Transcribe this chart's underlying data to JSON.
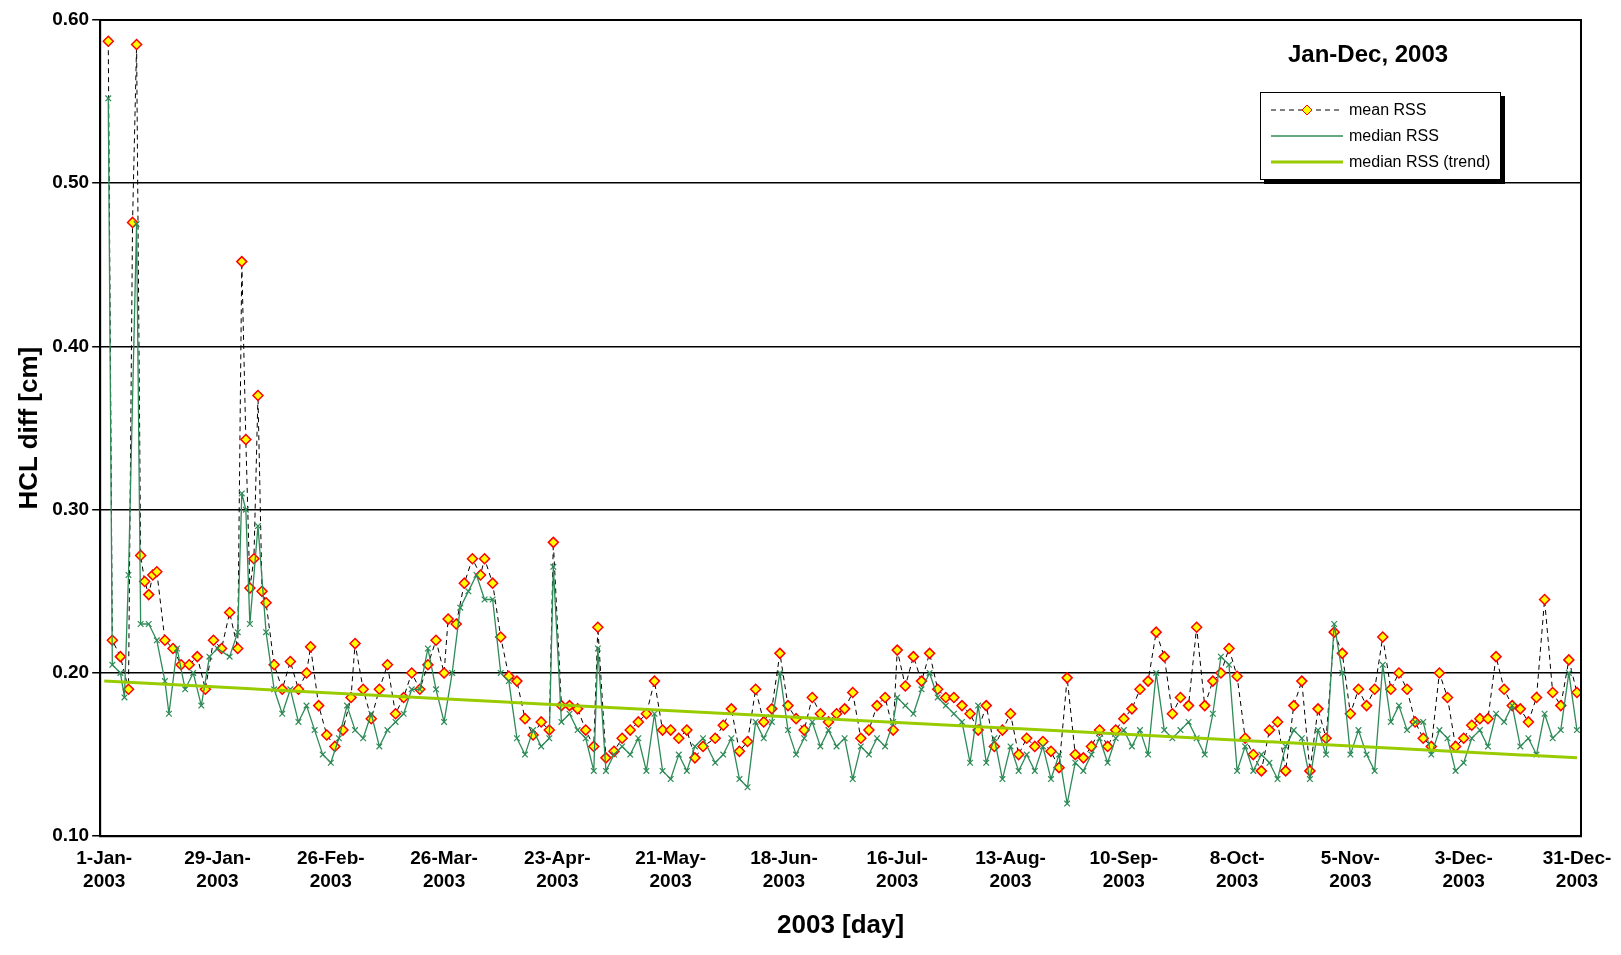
{
  "chart_data": {
    "type": "line",
    "xlabel": "2003 [day]",
    "ylabel": "HCL diff [cm]",
    "annotations": [
      "Jan-Dec, 2003"
    ],
    "legend": "top right",
    "grid": "y",
    "xlim": [
      "2002-12-31",
      "2004-01-01"
    ],
    "xticks": [
      {
        "value": "2003-01-01",
        "label": "1-Jan-2003"
      },
      {
        "value": "2003-01-29",
        "label": "29-Jan-2003"
      },
      {
        "value": "2003-02-26",
        "label": "26-Feb-2003"
      },
      {
        "value": "2003-03-26",
        "label": "26-Mar-2003"
      },
      {
        "value": "2003-04-23",
        "label": "23-Apr-2003"
      },
      {
        "value": "2003-05-21",
        "label": "21-May-2003"
      },
      {
        "value": "2003-06-18",
        "label": "18-Jun-2003"
      },
      {
        "value": "2003-07-16",
        "label": "16-Jul-2003"
      },
      {
        "value": "2003-08-13",
        "label": "13-Aug-2003"
      },
      {
        "value": "2003-09-10",
        "label": "10-Sep-2003"
      },
      {
        "value": "2003-10-08",
        "label": "8-Oct-2003"
      },
      {
        "value": "2003-11-05",
        "label": "5-Nov-2003"
      },
      {
        "value": "2003-12-03",
        "label": "3-Dec-2003"
      },
      {
        "value": "2003-12-31",
        "label": "31-Dec-2003"
      }
    ],
    "ylim": [
      0.1,
      0.6
    ],
    "yticks": [
      {
        "value": 0.1,
        "label": "0.10"
      },
      {
        "value": 0.2,
        "label": "0.20"
      },
      {
        "value": 0.3,
        "label": "0.30"
      },
      {
        "value": 0.4,
        "label": "0.40"
      },
      {
        "value": 0.5,
        "label": "0.50"
      },
      {
        "value": 0.6,
        "label": "0.60"
      }
    ],
    "series": [
      {
        "name": "mean RSS",
        "color": "#ff0000",
        "marker": "diamond",
        "line_style": "dashed",
        "x": [
          "2003-01-02",
          "2003-01-03",
          "2003-01-05",
          "2003-01-07",
          "2003-01-08",
          "2003-01-09",
          "2003-01-10",
          "2003-01-11",
          "2003-01-12",
          "2003-01-13",
          "2003-01-14",
          "2003-01-16",
          "2003-01-18",
          "2003-01-20",
          "2003-01-22",
          "2003-01-24",
          "2003-01-26",
          "2003-01-28",
          "2003-01-30",
          "2003-02-01",
          "2003-02-03",
          "2003-02-04",
          "2003-02-05",
          "2003-02-06",
          "2003-02-07",
          "2003-02-08",
          "2003-02-09",
          "2003-02-10",
          "2003-02-12",
          "2003-02-14",
          "2003-02-16",
          "2003-02-18",
          "2003-02-20",
          "2003-02-21",
          "2003-02-23",
          "2003-02-25",
          "2003-02-27",
          "2003-03-01",
          "2003-03-03",
          "2003-03-04",
          "2003-03-06",
          "2003-03-08",
          "2003-03-10",
          "2003-03-12",
          "2003-03-14",
          "2003-03-16",
          "2003-03-18",
          "2003-03-20",
          "2003-03-22",
          "2003-03-24",
          "2003-03-26",
          "2003-03-27",
          "2003-03-29",
          "2003-03-31",
          "2003-04-02",
          "2003-04-04",
          "2003-04-05",
          "2003-04-07",
          "2003-04-09",
          "2003-04-11",
          "2003-04-13",
          "2003-04-15",
          "2003-04-17",
          "2003-04-19",
          "2003-04-21",
          "2003-04-22",
          "2003-04-24",
          "2003-04-26",
          "2003-04-28",
          "2003-04-30",
          "2003-05-02",
          "2003-05-03",
          "2003-05-05",
          "2003-05-07",
          "2003-05-09",
          "2003-05-11",
          "2003-05-13",
          "2003-05-15",
          "2003-05-17",
          "2003-05-19",
          "2003-05-21",
          "2003-05-23",
          "2003-05-25",
          "2003-05-27",
          "2003-05-29",
          "2003-06-01",
          "2003-06-03",
          "2003-06-05",
          "2003-06-07",
          "2003-06-09",
          "2003-06-11",
          "2003-06-13",
          "2003-06-15",
          "2003-06-17",
          "2003-06-19",
          "2003-06-21",
          "2003-06-23",
          "2003-06-25",
          "2003-06-27",
          "2003-06-29",
          "2003-07-01",
          "2003-07-03",
          "2003-07-05",
          "2003-07-07",
          "2003-07-09",
          "2003-07-11",
          "2003-07-13",
          "2003-07-15",
          "2003-07-16",
          "2003-07-18",
          "2003-07-20",
          "2003-07-22",
          "2003-07-24",
          "2003-07-26",
          "2003-07-28",
          "2003-07-30",
          "2003-08-01",
          "2003-08-03",
          "2003-08-05",
          "2003-08-07",
          "2003-08-09",
          "2003-08-11",
          "2003-08-13",
          "2003-08-15",
          "2003-08-17",
          "2003-08-19",
          "2003-08-21",
          "2003-08-23",
          "2003-08-25",
          "2003-08-27",
          "2003-08-29",
          "2003-08-31",
          "2003-09-02",
          "2003-09-04",
          "2003-09-06",
          "2003-09-08",
          "2003-09-10",
          "2003-09-12",
          "2003-09-14",
          "2003-09-16",
          "2003-09-18",
          "2003-09-20",
          "2003-09-22",
          "2003-09-24",
          "2003-09-26",
          "2003-09-28",
          "2003-09-30",
          "2003-10-02",
          "2003-10-04",
          "2003-10-06",
          "2003-10-08",
          "2003-10-10",
          "2003-10-12",
          "2003-10-14",
          "2003-10-16",
          "2003-10-18",
          "2003-10-20",
          "2003-10-22",
          "2003-10-24",
          "2003-10-26",
          "2003-10-28",
          "2003-10-30",
          "2003-11-01",
          "2003-11-03",
          "2003-11-05",
          "2003-11-07",
          "2003-11-09",
          "2003-11-11",
          "2003-11-13",
          "2003-11-15",
          "2003-11-17",
          "2003-11-19",
          "2003-11-21",
          "2003-11-23",
          "2003-11-25",
          "2003-11-27",
          "2003-11-29",
          "2003-12-01",
          "2003-12-03",
          "2003-12-05",
          "2003-12-07",
          "2003-12-09",
          "2003-12-11",
          "2003-12-13",
          "2003-12-15",
          "2003-12-17",
          "2003-12-19",
          "2003-12-21",
          "2003-12-23",
          "2003-12-25",
          "2003-12-27",
          "2003-12-29",
          "2003-12-31"
        ],
        "values": [
          0.587,
          0.22,
          0.21,
          0.19,
          0.476,
          0.585,
          0.272,
          0.256,
          0.248,
          0.26,
          0.262,
          0.22,
          0.215,
          0.205,
          0.205,
          0.21,
          0.19,
          0.22,
          0.215,
          0.237,
          0.215,
          0.452,
          0.343,
          0.252,
          0.27,
          0.37,
          0.25,
          0.243,
          0.205,
          0.19,
          0.207,
          0.19,
          0.2,
          0.216,
          0.18,
          0.162,
          0.155,
          0.165,
          0.185,
          0.218,
          0.19,
          0.172,
          0.19,
          0.205,
          0.175,
          0.185,
          0.2,
          0.19,
          0.205,
          0.22,
          0.2,
          0.233,
          0.23,
          0.255,
          0.27,
          0.26,
          0.27,
          0.255,
          0.222,
          0.198,
          0.195,
          0.172,
          0.162,
          0.17,
          0.165,
          0.28,
          0.18,
          0.18,
          0.178,
          0.165,
          0.155,
          0.228,
          0.148,
          0.152,
          0.16,
          0.165,
          0.17,
          0.175,
          0.195,
          0.165,
          0.165,
          0.16,
          0.165,
          0.148,
          0.155,
          0.16,
          0.168,
          0.178,
          0.152,
          0.158,
          0.19,
          0.17,
          0.178,
          0.212,
          0.18,
          0.172,
          0.165,
          0.185,
          0.175,
          0.17,
          0.175,
          0.178,
          0.188,
          0.16,
          0.165,
          0.18,
          0.185,
          0.165,
          0.214,
          0.192,
          0.21,
          0.195,
          0.212,
          0.19,
          0.185,
          0.185,
          0.18,
          0.175,
          0.165,
          0.18,
          0.155,
          0.165,
          0.175,
          0.15,
          0.16,
          0.155,
          0.158,
          0.152,
          0.142,
          0.197,
          0.15,
          0.148,
          0.155,
          0.165,
          0.155,
          0.165,
          0.172,
          0.178,
          0.19,
          0.195,
          0.225,
          0.21,
          0.175,
          0.185,
          0.18,
          0.228,
          0.18,
          0.195,
          0.2,
          0.215,
          0.198,
          0.16,
          0.15,
          0.14,
          0.165,
          0.17,
          0.14,
          0.18,
          0.195,
          0.14,
          0.178,
          0.16,
          0.225,
          0.212,
          0.175,
          0.19,
          0.18,
          0.19,
          0.222,
          0.19,
          0.2,
          0.19,
          0.17,
          0.16,
          0.155,
          0.2,
          0.185,
          0.155,
          0.16,
          0.168,
          0.172,
          0.172,
          0.21,
          0.19,
          0.18,
          0.178,
          0.17,
          0.185,
          0.245,
          0.188,
          0.18,
          0.208,
          0.188
        ]
      },
      {
        "name": "median RSS",
        "color": "#2e8b57",
        "marker": "cross",
        "line_style": "solid",
        "x": [
          "2003-01-02",
          "2003-01-03",
          "2003-01-05",
          "2003-01-06",
          "2003-01-07",
          "2003-01-09",
          "2003-01-10",
          "2003-01-12",
          "2003-01-14",
          "2003-01-16",
          "2003-01-17",
          "2003-01-19",
          "2003-01-21",
          "2003-01-23",
          "2003-01-25",
          "2003-01-27",
          "2003-01-29",
          "2003-02-01",
          "2003-02-03",
          "2003-02-04",
          "2003-02-05",
          "2003-02-06",
          "2003-02-08",
          "2003-02-10",
          "2003-02-12",
          "2003-02-14",
          "2003-02-16",
          "2003-02-18",
          "2003-02-20",
          "2003-02-22",
          "2003-02-24",
          "2003-02-26",
          "2003-02-28",
          "2003-03-02",
          "2003-03-04",
          "2003-03-06",
          "2003-03-08",
          "2003-03-10",
          "2003-03-12",
          "2003-03-14",
          "2003-03-16",
          "2003-03-18",
          "2003-03-20",
          "2003-03-22",
          "2003-03-24",
          "2003-03-26",
          "2003-03-28",
          "2003-03-30",
          "2003-04-01",
          "2003-04-03",
          "2003-04-05",
          "2003-04-07",
          "2003-04-09",
          "2003-04-11",
          "2003-04-13",
          "2003-04-15",
          "2003-04-17",
          "2003-04-19",
          "2003-04-21",
          "2003-04-22",
          "2003-04-24",
          "2003-04-26",
          "2003-04-28",
          "2003-04-30",
          "2003-05-02",
          "2003-05-03",
          "2003-05-05",
          "2003-05-07",
          "2003-05-09",
          "2003-05-11",
          "2003-05-13",
          "2003-05-15",
          "2003-05-17",
          "2003-05-19",
          "2003-05-21",
          "2003-05-23",
          "2003-05-25",
          "2003-05-27",
          "2003-05-29",
          "2003-06-01",
          "2003-06-03",
          "2003-06-05",
          "2003-06-07",
          "2003-06-09",
          "2003-06-11",
          "2003-06-13",
          "2003-06-15",
          "2003-06-17",
          "2003-06-19",
          "2003-06-21",
          "2003-06-23",
          "2003-06-25",
          "2003-06-27",
          "2003-06-29",
          "2003-07-01",
          "2003-07-03",
          "2003-07-05",
          "2003-07-07",
          "2003-07-09",
          "2003-07-11",
          "2003-07-13",
          "2003-07-15",
          "2003-07-16",
          "2003-07-18",
          "2003-07-20",
          "2003-07-22",
          "2003-07-24",
          "2003-07-26",
          "2003-07-28",
          "2003-07-30",
          "2003-08-01",
          "2003-08-03",
          "2003-08-05",
          "2003-08-07",
          "2003-08-09",
          "2003-08-11",
          "2003-08-13",
          "2003-08-15",
          "2003-08-17",
          "2003-08-19",
          "2003-08-21",
          "2003-08-23",
          "2003-08-25",
          "2003-08-27",
          "2003-08-29",
          "2003-08-31",
          "2003-09-02",
          "2003-09-04",
          "2003-09-06",
          "2003-09-08",
          "2003-09-10",
          "2003-09-12",
          "2003-09-14",
          "2003-09-16",
          "2003-09-18",
          "2003-09-20",
          "2003-09-22",
          "2003-09-24",
          "2003-09-26",
          "2003-09-28",
          "2003-09-30",
          "2003-10-02",
          "2003-10-04",
          "2003-10-06",
          "2003-10-08",
          "2003-10-10",
          "2003-10-12",
          "2003-10-14",
          "2003-10-16",
          "2003-10-18",
          "2003-10-20",
          "2003-10-22",
          "2003-10-24",
          "2003-10-26",
          "2003-10-28",
          "2003-10-30",
          "2003-11-01",
          "2003-11-03",
          "2003-11-05",
          "2003-11-07",
          "2003-11-09",
          "2003-11-11",
          "2003-11-13",
          "2003-11-15",
          "2003-11-17",
          "2003-11-19",
          "2003-11-21",
          "2003-11-23",
          "2003-11-25",
          "2003-11-27",
          "2003-11-29",
          "2003-12-01",
          "2003-12-03",
          "2003-12-05",
          "2003-12-07",
          "2003-12-09",
          "2003-12-11",
          "2003-12-13",
          "2003-12-15",
          "2003-12-17",
          "2003-12-19",
          "2003-12-21",
          "2003-12-23",
          "2003-12-25",
          "2003-12-27",
          "2003-12-29",
          "2003-12-31"
        ],
        "values": [
          0.552,
          0.205,
          0.2,
          0.185,
          0.26,
          0.475,
          0.23,
          0.23,
          0.22,
          0.195,
          0.175,
          0.215,
          0.19,
          0.2,
          0.18,
          0.21,
          0.215,
          0.21,
          0.225,
          0.31,
          0.3,
          0.23,
          0.29,
          0.225,
          0.19,
          0.175,
          0.19,
          0.17,
          0.18,
          0.165,
          0.15,
          0.145,
          0.16,
          0.18,
          0.165,
          0.16,
          0.175,
          0.155,
          0.165,
          0.17,
          0.175,
          0.19,
          0.19,
          0.215,
          0.19,
          0.17,
          0.2,
          0.24,
          0.25,
          0.26,
          0.245,
          0.245,
          0.2,
          0.195,
          0.16,
          0.15,
          0.165,
          0.155,
          0.16,
          0.265,
          0.17,
          0.175,
          0.165,
          0.16,
          0.14,
          0.215,
          0.14,
          0.15,
          0.155,
          0.15,
          0.16,
          0.14,
          0.175,
          0.14,
          0.135,
          0.15,
          0.14,
          0.155,
          0.16,
          0.145,
          0.15,
          0.16,
          0.135,
          0.13,
          0.17,
          0.16,
          0.17,
          0.2,
          0.165,
          0.15,
          0.16,
          0.17,
          0.155,
          0.165,
          0.155,
          0.16,
          0.135,
          0.155,
          0.15,
          0.16,
          0.155,
          0.17,
          0.185,
          0.18,
          0.175,
          0.19,
          0.2,
          0.185,
          0.18,
          0.175,
          0.17,
          0.145,
          0.18,
          0.145,
          0.16,
          0.135,
          0.155,
          0.14,
          0.15,
          0.14,
          0.155,
          0.135,
          0.15,
          0.12,
          0.145,
          0.14,
          0.15,
          0.16,
          0.145,
          0.16,
          0.165,
          0.155,
          0.165,
          0.15,
          0.2,
          0.165,
          0.16,
          0.165,
          0.17,
          0.16,
          0.15,
          0.175,
          0.21,
          0.205,
          0.14,
          0.155,
          0.14,
          0.15,
          0.145,
          0.135,
          0.155,
          0.165,
          0.16,
          0.135,
          0.165,
          0.15,
          0.23,
          0.2,
          0.15,
          0.165,
          0.15,
          0.14,
          0.205,
          0.17,
          0.18,
          0.165,
          0.17,
          0.17,
          0.15,
          0.165,
          0.16,
          0.14,
          0.145,
          0.16,
          0.165,
          0.155,
          0.175,
          0.17,
          0.18,
          0.155,
          0.16,
          0.15,
          0.175,
          0.16,
          0.165,
          0.2,
          0.165
        ]
      },
      {
        "name": "median RSS (trend)",
        "color": "#99cc00",
        "marker": "none",
        "line_style": "solid",
        "x": [
          "2003-01-01",
          "2003-12-31"
        ],
        "values": [
          0.195,
          0.148
        ]
      }
    ]
  }
}
